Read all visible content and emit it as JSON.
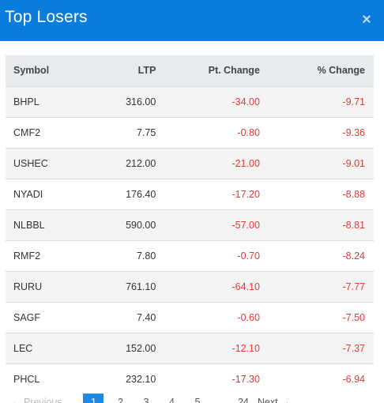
{
  "modal": {
    "title": "Top Losers",
    "close_label": "×"
  },
  "table": {
    "columns": [
      "Symbol",
      "LTP",
      "Pt. Change",
      "% Change"
    ],
    "rows": [
      {
        "symbol": "BHPL",
        "ltp": "316.00",
        "pt_change": "-34.00",
        "pct_change": "-9.71"
      },
      {
        "symbol": "CMF2",
        "ltp": "7.75",
        "pt_change": "-0.80",
        "pct_change": "-9.36"
      },
      {
        "symbol": "USHEC",
        "ltp": "212.00",
        "pt_change": "-21.00",
        "pct_change": "-9.01"
      },
      {
        "symbol": "NYADI",
        "ltp": "176.40",
        "pt_change": "-17.20",
        "pct_change": "-8.88"
      },
      {
        "symbol": "NLBBL",
        "ltp": "590.00",
        "pt_change": "-57.00",
        "pct_change": "-8.81"
      },
      {
        "symbol": "RMF2",
        "ltp": "7.80",
        "pt_change": "-0.70",
        "pct_change": "-8.24"
      },
      {
        "symbol": "RURU",
        "ltp": "761.10",
        "pt_change": "-64.10",
        "pct_change": "-7.77"
      },
      {
        "symbol": "SAGF",
        "ltp": "7.40",
        "pt_change": "-0.60",
        "pct_change": "-7.50"
      },
      {
        "symbol": "LEC",
        "ltp": "152.00",
        "pt_change": "-12.10",
        "pct_change": "-7.37"
      },
      {
        "symbol": "PHCL",
        "ltp": "232.10",
        "pt_change": "-17.30",
        "pct_change": "-6.94"
      }
    ]
  },
  "pagination": {
    "previous_label": "← Previous",
    "pages": [
      "1",
      "2",
      "3",
      "4",
      "5"
    ],
    "ellipsis": "…",
    "last_page": "24",
    "next_label": "Next →"
  },
  "colors": {
    "header_bg": "#0a7ddc",
    "negative": "#e53935",
    "active_page": "#1e88e5"
  }
}
